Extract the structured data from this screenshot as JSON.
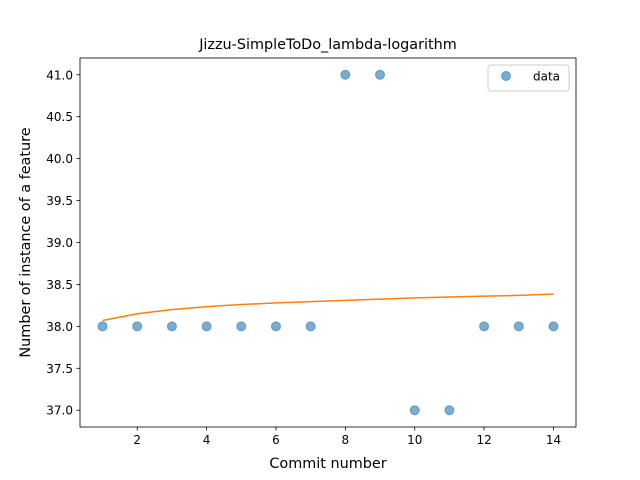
{
  "chart_data": {
    "type": "scatter",
    "title": "Jizzu-SimpleToDo_lambda-logarithm",
    "xlabel": "Commit number",
    "ylabel": "Number of instance of a feature",
    "xlim": [
      0.35,
      14.65
    ],
    "ylim": [
      36.8,
      41.2
    ],
    "xticks": [
      2,
      4,
      6,
      8,
      10,
      12,
      14
    ],
    "xtick_labels": [
      "2",
      "4",
      "6",
      "8",
      "10",
      "12",
      "14"
    ],
    "yticks": [
      37.0,
      37.5,
      38.0,
      38.5,
      39.0,
      39.5,
      40.0,
      40.5,
      41.0
    ],
    "ytick_labels": [
      "37.0",
      "37.5",
      "38.0",
      "38.5",
      "39.0",
      "39.5",
      "40.0",
      "40.5",
      "41.0"
    ],
    "grid": false,
    "legend": {
      "position": "top-right"
    },
    "series": [
      {
        "name": "data",
        "kind": "scatter",
        "color": "#1f77b4",
        "x": [
          1,
          2,
          3,
          4,
          5,
          6,
          7,
          8,
          9,
          10,
          11,
          12,
          13,
          14
        ],
        "y": [
          38,
          38,
          38,
          38,
          38,
          38,
          38,
          41,
          41,
          37,
          37,
          38,
          38,
          38
        ]
      },
      {
        "kind": "line",
        "color": "#ff7f0e",
        "x": [
          1,
          2,
          3,
          4,
          5,
          6,
          7,
          8,
          9,
          10,
          11,
          12,
          13,
          14
        ],
        "y": [
          38.07,
          38.15,
          38.2,
          38.235,
          38.26,
          38.28,
          38.295,
          38.31,
          38.325,
          38.34,
          38.35,
          38.36,
          38.37,
          38.385
        ]
      }
    ]
  }
}
